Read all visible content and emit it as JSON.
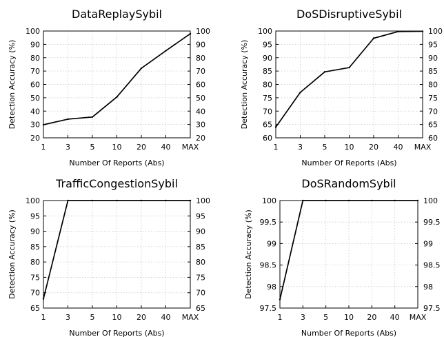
{
  "chart_data": [
    {
      "type": "line",
      "title": "DataReplaySybil",
      "xlabel": "Number Of Reports (Abs)",
      "ylabel": "Detection Accuracy (%)",
      "categories": [
        "1",
        "3",
        "5",
        "10",
        "20",
        "40",
        "MAX"
      ],
      "ylim": [
        20,
        100
      ],
      "yticks": [
        "20",
        "30",
        "40",
        "50",
        "60",
        "70",
        "80",
        "90",
        "100"
      ],
      "right_axis_ticks": true,
      "grid": true,
      "series": [
        {
          "values": [
            29.8,
            34.0,
            35.6,
            50.6,
            72.1,
            85.2,
            98.0
          ]
        }
      ]
    },
    {
      "type": "line",
      "title": "DoSDisruptiveSybil",
      "xlabel": "Number Of Reports (Abs)",
      "ylabel": "Detection Accuracy (%)",
      "categories": [
        "1",
        "3",
        "5",
        "10",
        "20",
        "40",
        "MAX"
      ],
      "ylim": [
        60,
        100
      ],
      "yticks": [
        "60",
        "65",
        "70",
        "75",
        "80",
        "85",
        "90",
        "95",
        "100"
      ],
      "right_axis_ticks": true,
      "grid": true,
      "series": [
        {
          "values": [
            64.0,
            77.0,
            84.7,
            86.3,
            97.3,
            99.8,
            99.9
          ]
        }
      ]
    },
    {
      "type": "line",
      "title": "TrafficCongestionSybil",
      "xlabel": "Number Of Reports (Abs)",
      "ylabel": "Detection Accuracy (%)",
      "categories": [
        "1",
        "3",
        "5",
        "10",
        "20",
        "40",
        "MAX"
      ],
      "ylim": [
        65,
        100
      ],
      "yticks": [
        "65",
        "70",
        "75",
        "80",
        "85",
        "90",
        "95",
        "100"
      ],
      "right_axis_ticks": true,
      "grid": true,
      "series": [
        {
          "values": [
            68.0,
            100.0,
            100.0,
            100.0,
            100.0,
            100.0,
            100.0
          ]
        }
      ]
    },
    {
      "type": "line",
      "title": "DoSRandomSybil",
      "xlabel": "Number Of Reports (Abs)",
      "ylabel": "Detection Accuracy (%)",
      "categories": [
        "1",
        "3",
        "5",
        "10",
        "20",
        "40",
        "MAX"
      ],
      "ylim": [
        97.5,
        100
      ],
      "yticks": [
        "97.5",
        "98",
        "98.5",
        "99",
        "99.5",
        "100"
      ],
      "right_axis_ticks": true,
      "grid": true,
      "series": [
        {
          "values": [
            97.7,
            100.0,
            100.0,
            100.0,
            100.0,
            100.0,
            100.0
          ]
        }
      ]
    }
  ]
}
